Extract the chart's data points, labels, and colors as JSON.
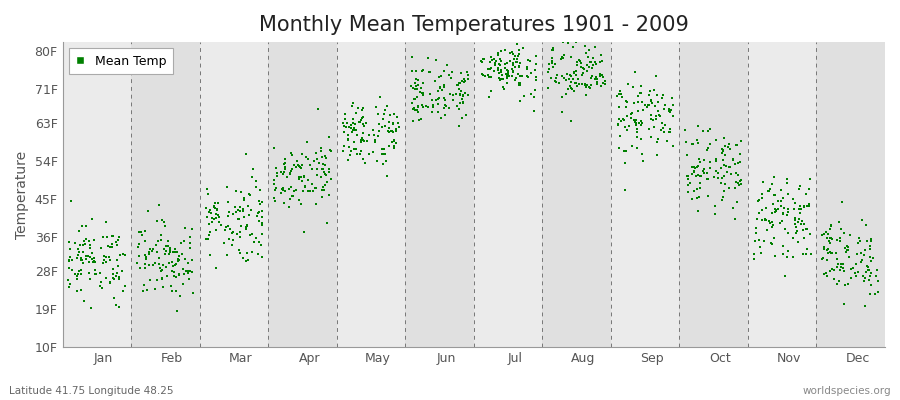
{
  "title": "Monthly Mean Temperatures 1901 - 2009",
  "ylabel": "Temperature",
  "yticks": [
    10,
    19,
    28,
    36,
    45,
    54,
    63,
    71,
    80
  ],
  "ytick_labels": [
    "10F",
    "19F",
    "28F",
    "36F",
    "45F",
    "54F",
    "63F",
    "71F",
    "80F"
  ],
  "ylim": [
    10,
    82
  ],
  "months": [
    "Jan",
    "Feb",
    "Mar",
    "Apr",
    "May",
    "Jun",
    "Jul",
    "Aug",
    "Sep",
    "Oct",
    "Nov",
    "Dec"
  ],
  "marker_color": "#008000",
  "bg_color": "#EFEFEF",
  "band_even": "#EBEBEB",
  "band_odd": "#E0E0E0",
  "footer_left": "Latitude 41.75 Longitude 48.25",
  "footer_right": "worldspecies.org",
  "legend_label": "Mean Temp",
  "title_fontsize": 15,
  "label_fontsize": 10,
  "tick_fontsize": 9,
  "monthly_mean_temps_F": [
    30.2,
    30.8,
    40.0,
    51.0,
    60.5,
    70.0,
    75.8,
    74.5,
    64.0,
    52.0,
    40.5,
    31.0
  ],
  "monthly_std_F": [
    4.5,
    4.5,
    5.0,
    4.0,
    4.0,
    3.5,
    3.0,
    3.5,
    4.5,
    4.5,
    4.5,
    4.5
  ],
  "n_years": 109,
  "year_start": 1901,
  "year_end": 2009
}
